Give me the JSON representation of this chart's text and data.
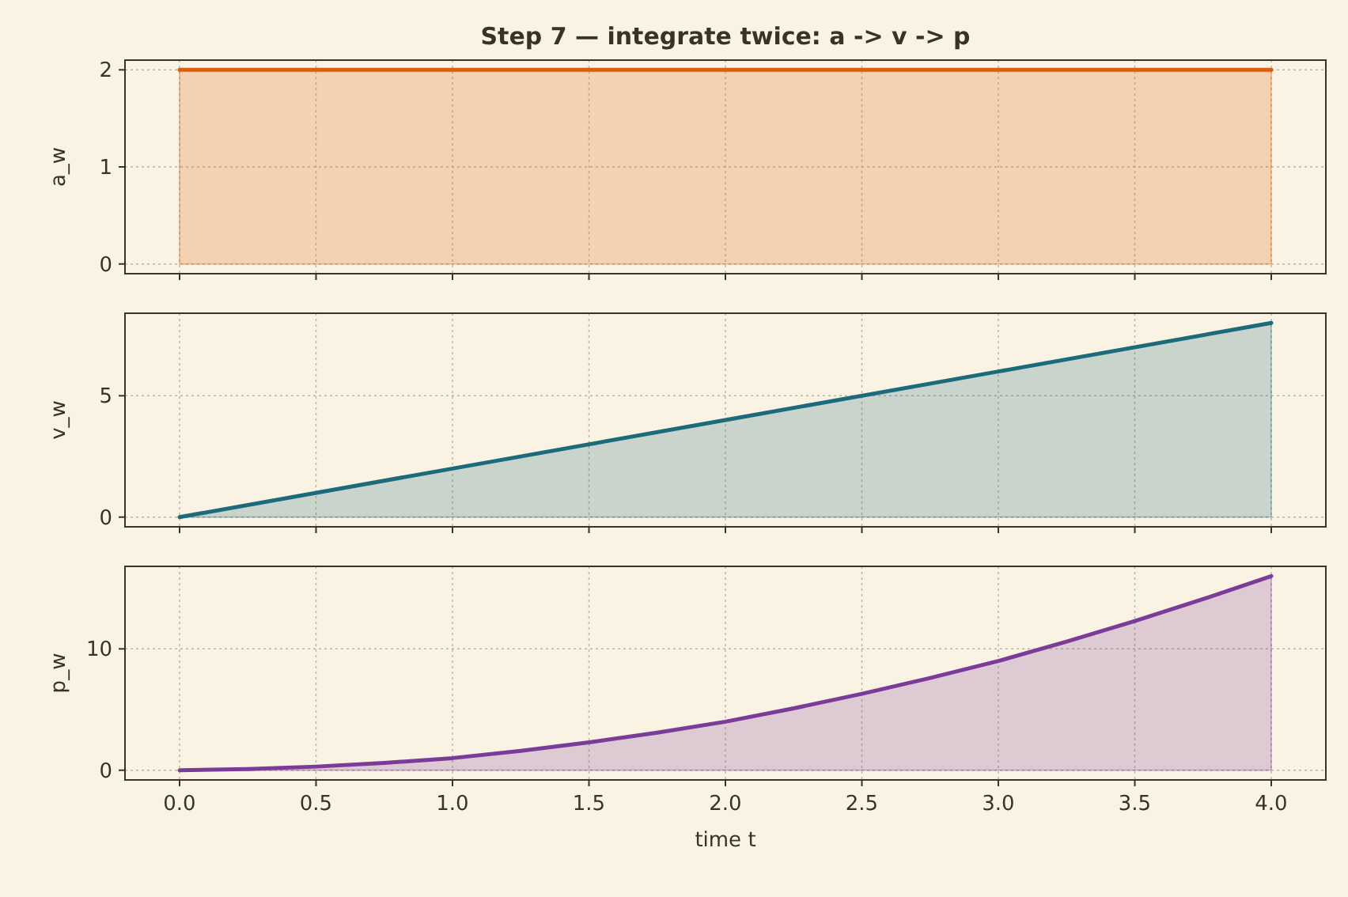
{
  "chart_data": [
    {
      "type": "area",
      "title": "Step 7 — integrate twice: a -> v -> p",
      "ylabel": "a_w",
      "x": [
        0,
        4
      ],
      "series": [
        {
          "color": "#d95f0e",
          "values": [
            2,
            2
          ]
        }
      ],
      "xlim": [
        -0.2,
        4.2
      ],
      "xticks": [
        {
          "value": 0,
          "label": null
        },
        {
          "value": 0.5,
          "label": null
        },
        {
          "value": 1,
          "label": null
        },
        {
          "value": 1.5,
          "label": null
        },
        {
          "value": 2,
          "label": null
        },
        {
          "value": 2.5,
          "label": null
        },
        {
          "value": 3,
          "label": null
        },
        {
          "value": 3.5,
          "label": null
        },
        {
          "value": 4,
          "label": null
        }
      ],
      "ylim": [
        -0.1,
        2.1
      ],
      "yticks": [
        0,
        1,
        2
      ],
      "grid": true,
      "tick_labels": "y"
    },
    {
      "type": "area",
      "ylabel": "v_w",
      "x": [
        0,
        1,
        2,
        3,
        4
      ],
      "series": [
        {
          "color": "#1b6b7b",
          "values": [
            0,
            2,
            4,
            6,
            8
          ]
        }
      ],
      "xlim": [
        -0.2,
        4.2
      ],
      "xticks": [
        {
          "value": 0,
          "label": null
        },
        {
          "value": 0.5,
          "label": null
        },
        {
          "value": 1,
          "label": null
        },
        {
          "value": 1.5,
          "label": null
        },
        {
          "value": 2,
          "label": null
        },
        {
          "value": 2.5,
          "label": null
        },
        {
          "value": 3,
          "label": null
        },
        {
          "value": 3.5,
          "label": null
        },
        {
          "value": 4,
          "label": null
        }
      ],
      "ylim": [
        -0.4,
        8.4
      ],
      "yticks": [
        0,
        5
      ],
      "grid": true,
      "tick_labels": "y"
    },
    {
      "type": "area",
      "ylabel": "p_w",
      "xlabel": "time t",
      "x": [
        0,
        0.25,
        0.5,
        0.75,
        1,
        1.25,
        1.5,
        1.75,
        2,
        2.25,
        2.5,
        2.75,
        3,
        3.25,
        3.5,
        3.75,
        4
      ],
      "series": [
        {
          "color": "#7b3b98",
          "values": [
            0,
            0.1,
            0.3,
            0.6,
            1,
            1.6,
            2.3,
            3.1,
            4,
            5.1,
            6.3,
            7.6,
            9,
            10.6,
            12.3,
            14.1,
            16
          ]
        }
      ],
      "xlim": [
        -0.2,
        4.2
      ],
      "xticks": [
        {
          "value": 0,
          "label": "0.0"
        },
        {
          "value": 0.5,
          "label": "0.5"
        },
        {
          "value": 1,
          "label": "1.0"
        },
        {
          "value": 1.5,
          "label": "1.5"
        },
        {
          "value": 2,
          "label": "2.0"
        },
        {
          "value": 2.5,
          "label": "2.5"
        },
        {
          "value": 3,
          "label": "3.0"
        },
        {
          "value": 3.5,
          "label": "3.5"
        },
        {
          "value": 4,
          "label": "4.0"
        }
      ],
      "ylim": [
        -0.8,
        16.8
      ],
      "yticks": [
        0,
        10
      ],
      "grid": true
    }
  ]
}
